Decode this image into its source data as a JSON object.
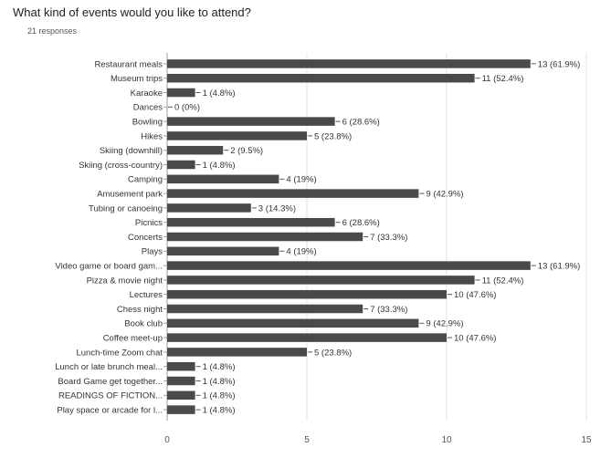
{
  "chart_data": {
    "type": "bar",
    "orientation": "horizontal",
    "title": "What kind of events would you like to attend?",
    "subtitle": "21 responses",
    "categories": [
      "Restaurant meals",
      "Museum trips",
      "Karaoke",
      "Dances",
      "Bowling",
      "Hikes",
      "Skiing (downhill)",
      "Skiing (cross-country)",
      "Camping",
      "Amusement park",
      "Tubing or canoeing",
      "Picnics",
      "Concerts",
      "Plays",
      "Video game or board gam...",
      "Pizza & movie night",
      "Lectures",
      "Chess night",
      "Book club",
      "Coffee meet-up",
      "Lunch-time Zoom chat",
      "Lunch or late brunch meal...",
      "Board Game get together...",
      "READINGS OF FICTION...",
      "Play space or arcade for l..."
    ],
    "values": [
      13,
      11,
      1,
      0,
      6,
      5,
      2,
      1,
      4,
      9,
      3,
      6,
      7,
      4,
      13,
      11,
      10,
      7,
      9,
      10,
      5,
      1,
      1,
      1,
      1
    ],
    "value_labels": [
      "13 (61.9%)",
      "11 (52.4%)",
      "1 (4.8%)",
      "0 (0%)",
      "6 (28.6%)",
      "5 (23.8%)",
      "2 (9.5%)",
      "1 (4.8%)",
      "4 (19%)",
      "9 (42.9%)",
      "3 (14.3%)",
      "6 (28.6%)",
      "7 (33.3%)",
      "4 (19%)",
      "13 (61.9%)",
      "11 (52.4%)",
      "10 (47.6%)",
      "7 (33.3%)",
      "9 (42.9%)",
      "10 (47.6%)",
      "5 (23.8%)",
      "1 (4.8%)",
      "1 (4.8%)",
      "1 (4.8%)",
      "1 (4.8%)"
    ],
    "xlim": [
      0,
      15
    ],
    "xticks": [
      "0",
      "5",
      "10",
      "15"
    ],
    "grid": true,
    "bar_color": "#4a4a4a",
    "grid_color": "#e0e0e0",
    "axis_color": "#9e9e9e"
  }
}
